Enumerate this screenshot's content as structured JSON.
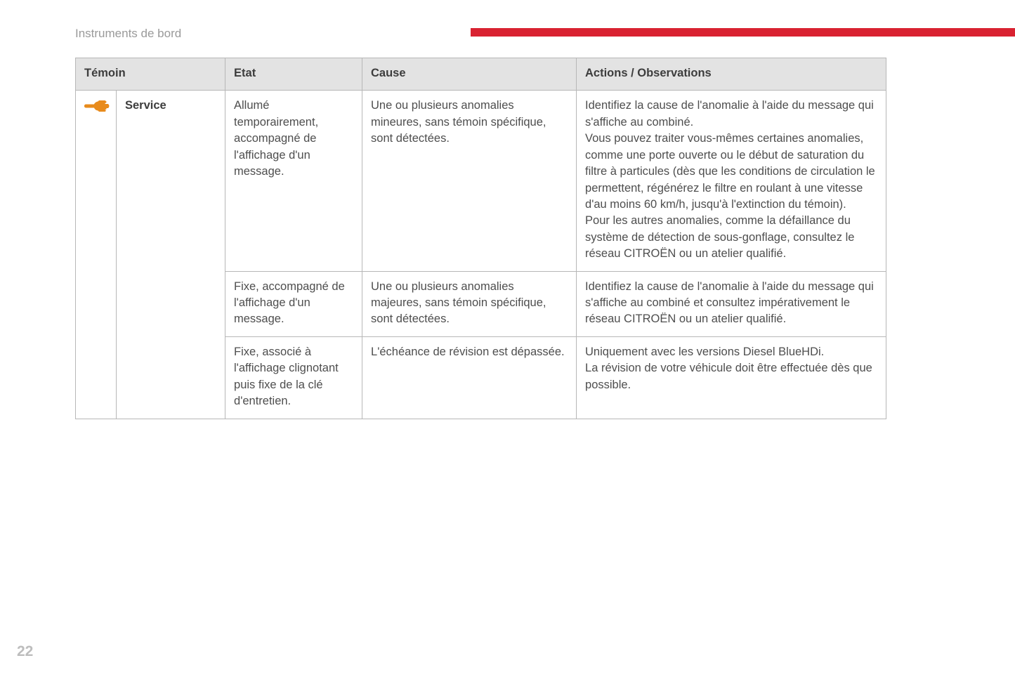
{
  "doc": {
    "section_title": "Instruments de bord",
    "page_number": "22",
    "accent_color": "#d92231",
    "icon_color": "#e88b1c"
  },
  "table": {
    "headers": {
      "temoin": "Témoin",
      "etat": "Etat",
      "cause": "Cause",
      "actions": "Actions / Observations"
    },
    "temoin_label": "Service",
    "rows": [
      {
        "etat": "Allumé temporairement, accompagné de l'affichage d'un message.",
        "cause": "Une ou plusieurs anomalies mineures, sans témoin spécifique, sont détectées.",
        "actions": "Identifiez la cause de l'anomalie à l'aide du message qui s'affiche au combiné.\nVous pouvez traiter vous-mêmes certaines anomalies, comme une porte ouverte ou le début de saturation du filtre à particules (dès que les conditions de circulation le permettent, régénérez le filtre en roulant à une vitesse d'au moins 60 km/h, jusqu'à l'extinction du témoin).\nPour les autres anomalies, comme la défaillance du système de détection de sous-gonflage, consultez le réseau CITROËN ou un atelier qualifié."
      },
      {
        "etat": "Fixe, accompagné de l'affichage d'un message.",
        "cause": "Une ou plusieurs anomalies majeures, sans témoin spécifique, sont détectées.",
        "actions": "Identifiez la cause de l'anomalie à l'aide du message qui s'affiche au combiné et consultez impérativement le réseau CITROËN ou un atelier qualifié."
      },
      {
        "etat": "Fixe, associé à l'affichage clignotant puis fixe de la clé d'entretien.",
        "cause": "L'échéance de révision est dépassée.",
        "actions": "Uniquement avec les versions Diesel BlueHDi.\nLa révision de votre véhicule doit être effectuée dès que possible."
      }
    ]
  }
}
